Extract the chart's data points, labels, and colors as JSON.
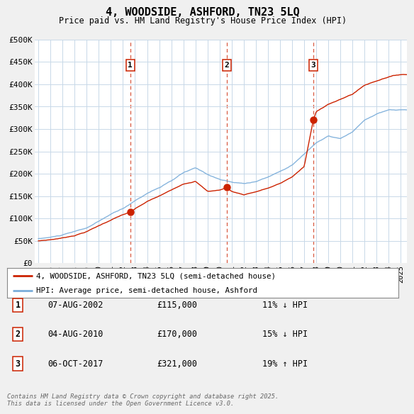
{
  "title": "4, WOODSIDE, ASHFORD, TN23 5LQ",
  "subtitle": "Price paid vs. HM Land Registry's House Price Index (HPI)",
  "bg_color": "#f0f0f0",
  "plot_bg_color": "#ffffff",
  "grid_color": "#c8d8e8",
  "hpi_color": "#7aadda",
  "price_color": "#cc2200",
  "sale_marker_color": "#cc2200",
  "ylim": [
    0,
    500000
  ],
  "yticks": [
    0,
    50000,
    100000,
    150000,
    200000,
    250000,
    300000,
    350000,
    400000,
    450000,
    500000
  ],
  "ytick_labels": [
    "£0",
    "£50K",
    "£100K",
    "£150K",
    "£200K",
    "£250K",
    "£300K",
    "£350K",
    "£400K",
    "£450K",
    "£500K"
  ],
  "xlim_start": 1994.7,
  "xlim_end": 2025.5,
  "xticks": [
    1995,
    1996,
    1997,
    1998,
    1999,
    2000,
    2001,
    2002,
    2003,
    2004,
    2005,
    2006,
    2007,
    2008,
    2009,
    2010,
    2011,
    2012,
    2013,
    2014,
    2015,
    2016,
    2017,
    2018,
    2019,
    2020,
    2021,
    2022,
    2023,
    2024,
    2025
  ],
  "sale1_x": 2002.6,
  "sale1_y": 115000,
  "sale1_label": "1",
  "sale1_date": "07-AUG-2002",
  "sale1_price": "£115,000",
  "sale1_hpi": "11% ↓ HPI",
  "sale2_x": 2010.6,
  "sale2_y": 170000,
  "sale2_label": "2",
  "sale2_date": "04-AUG-2010",
  "sale2_price": "£170,000",
  "sale2_hpi": "15% ↓ HPI",
  "sale3_x": 2017.75,
  "sale3_y": 321000,
  "sale3_label": "3",
  "sale3_date": "06-OCT-2017",
  "sale3_price": "£321,000",
  "sale3_hpi": "19% ↑ HPI",
  "legend_label_price": "4, WOODSIDE, ASHFORD, TN23 5LQ (semi-detached house)",
  "legend_label_hpi": "HPI: Average price, semi-detached house, Ashford",
  "footer": "Contains HM Land Registry data © Crown copyright and database right 2025.\nThis data is licensed under the Open Government Licence v3.0."
}
